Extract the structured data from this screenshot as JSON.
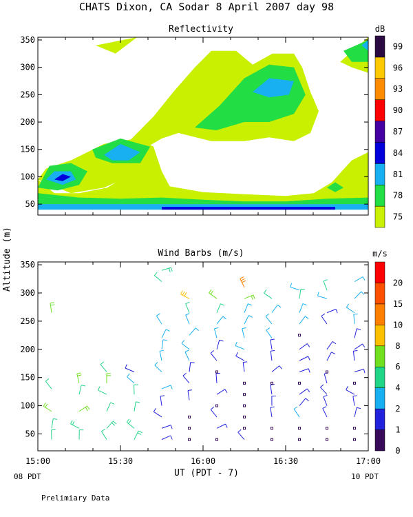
{
  "header": {
    "title": "CHATS Dixon, CA  Sodar   8 April 2007  day  98"
  },
  "panels": {
    "top_title": "Reflectivity",
    "bottom_title": "Wind Barbs (m/s)",
    "y_axis_label": "Altitude (m)",
    "x_axis_label": "UT  (PDT - 7)",
    "left_time_note": "08 PDT",
    "right_time_note": "10 PDT",
    "footer_note": "Prelimiary Data"
  },
  "colors": {
    "reflectivity": [
      "#c8f000",
      "#22dd44",
      "#18b0f0",
      "#0000dd",
      "#4400a0",
      "#ff0000",
      "#ff8c00",
      "#ffc800",
      "#2a0a40"
    ],
    "wind_speed": [
      "#3a0a5a",
      "#2222dd",
      "#18b0f0",
      "#22d488",
      "#70e020",
      "#ffc000",
      "#ff8000",
      "#ff5000",
      "#ff0000"
    ]
  },
  "chart_data": [
    {
      "type": "heatmap",
      "title": "Reflectivity",
      "xlabel": "UT  (PDT - 7)",
      "ylabel": "Altitude (m)",
      "x_ticks": [
        "15:00",
        "15:30",
        "16:00",
        "16:30",
        "17:00"
      ],
      "xlim": [
        "15:00",
        "17:00"
      ],
      "y_ticks": [
        50,
        100,
        150,
        200,
        250,
        300,
        350
      ],
      "ylim": [
        30,
        355
      ],
      "colorbar": {
        "unit": "dB",
        "labels": [
          75,
          78,
          81,
          84,
          87,
          90,
          93,
          96,
          99
        ]
      },
      "regions": [
        {
          "level": 75,
          "points": [
            [
              15.0,
              40
            ],
            [
              17.0,
              40
            ],
            [
              17.0,
              145
            ],
            [
              16.9,
              110
            ],
            [
              16.78,
              90
            ],
            [
              16.67,
              70
            ],
            [
              16.5,
              65
            ],
            [
              16.25,
              68
            ],
            [
              16.0,
              72
            ],
            [
              15.75,
              85
            ],
            [
              15.58,
              110
            ],
            [
              15.42,
              80
            ],
            [
              15.25,
              70
            ],
            [
              15.1,
              70
            ],
            [
              15.0,
              95
            ]
          ]
        },
        {
          "level": 75,
          "points": [
            [
              15.0,
              95
            ],
            [
              15.05,
              115
            ],
            [
              15.2,
              130
            ],
            [
              15.4,
              160
            ],
            [
              15.6,
              170
            ],
            [
              15.7,
              155
            ],
            [
              15.75,
              110
            ],
            [
              15.82,
              70
            ],
            [
              16.0,
              55
            ],
            [
              16.3,
              55
            ],
            [
              16.6,
              60
            ],
            [
              16.75,
              80
            ],
            [
              16.9,
              130
            ],
            [
              17.0,
              145
            ],
            [
              17.0,
              140
            ],
            [
              16.95,
              120
            ],
            [
              16.85,
              85
            ],
            [
              16.7,
              60
            ],
            [
              16.4,
              50
            ],
            [
              16.0,
              50
            ],
            [
              15.7,
              60
            ],
            [
              15.55,
              100
            ],
            [
              15.4,
              80
            ],
            [
              15.2,
              70
            ],
            [
              15.0,
              95
            ]
          ]
        },
        {
          "level": 75,
          "points": [
            [
              15.52,
              155
            ],
            [
              15.7,
              210
            ],
            [
              15.82,
              255
            ],
            [
              15.95,
              300
            ],
            [
              16.05,
              330
            ],
            [
              16.2,
              330
            ],
            [
              16.3,
              305
            ],
            [
              16.42,
              325
            ],
            [
              16.55,
              325
            ],
            [
              16.6,
              300
            ],
            [
              16.65,
              255
            ],
            [
              16.7,
              220
            ],
            [
              16.65,
              180
            ],
            [
              16.55,
              165
            ],
            [
              16.4,
              172
            ],
            [
              16.25,
              165
            ],
            [
              16.05,
              165
            ],
            [
              15.85,
              180
            ],
            [
              15.75,
              170
            ],
            [
              15.58,
              140
            ]
          ]
        },
        {
          "level": 75,
          "points": [
            [
              15.35,
              340
            ],
            [
              15.6,
              355
            ],
            [
              15.47,
              325
            ]
          ]
        },
        {
          "level": 75,
          "points": [
            [
              16.83,
              310
            ],
            [
              17.0,
              355
            ],
            [
              17.0,
              290
            ],
            [
              16.9,
              300
            ]
          ]
        },
        {
          "level": 78,
          "points": [
            [
              15.0,
              50
            ],
            [
              17.0,
              50
            ],
            [
              17.0,
              62
            ],
            [
              16.75,
              60
            ],
            [
              16.5,
              55
            ],
            [
              16.25,
              55
            ],
            [
              16.0,
              58
            ],
            [
              15.75,
              62
            ],
            [
              15.5,
              60
            ],
            [
              15.25,
              62
            ],
            [
              15.0,
              70
            ]
          ]
        },
        {
          "level": 78,
          "points": [
            [
              15.0,
              80
            ],
            [
              15.07,
              120
            ],
            [
              15.2,
              125
            ],
            [
              15.3,
              110
            ],
            [
              15.25,
              85
            ],
            [
              15.12,
              75
            ]
          ]
        },
        {
          "level": 78,
          "points": [
            [
              15.33,
              150
            ],
            [
              15.5,
              170
            ],
            [
              15.68,
              155
            ],
            [
              15.62,
              125
            ],
            [
              15.45,
              125
            ],
            [
              15.35,
              135
            ]
          ]
        },
        {
          "level": 78,
          "points": [
            [
              15.95,
              190
            ],
            [
              16.1,
              230
            ],
            [
              16.25,
              280
            ],
            [
              16.4,
              305
            ],
            [
              16.55,
              300
            ],
            [
              16.62,
              250
            ],
            [
              16.55,
              215
            ],
            [
              16.4,
              200
            ],
            [
              16.25,
              200
            ],
            [
              16.08,
              185
            ]
          ]
        },
        {
          "level": 78,
          "points": [
            [
              16.75,
              80
            ],
            [
              16.8,
              90
            ],
            [
              16.85,
              80
            ],
            [
              16.8,
              72
            ]
          ]
        },
        {
          "level": 78,
          "points": [
            [
              16.85,
              330
            ],
            [
              17.0,
              350
            ],
            [
              17.0,
              310
            ],
            [
              16.9,
              310
            ]
          ]
        },
        {
          "level": 81,
          "points": [
            [
              15.0,
              40
            ],
            [
              17.0,
              40
            ],
            [
              17.0,
              50
            ],
            [
              15.0,
              50
            ]
          ]
        },
        {
          "level": 81,
          "points": [
            [
              15.05,
              95
            ],
            [
              15.1,
              110
            ],
            [
              15.2,
              110
            ],
            [
              15.23,
              95
            ],
            [
              15.15,
              85
            ]
          ]
        },
        {
          "level": 81,
          "points": [
            [
              15.4,
              140
            ],
            [
              15.5,
              160
            ],
            [
              15.62,
              145
            ],
            [
              15.55,
              130
            ],
            [
              15.45,
              130
            ]
          ]
        },
        {
          "level": 81,
          "points": [
            [
              16.3,
              255
            ],
            [
              16.4,
              280
            ],
            [
              16.55,
              275
            ],
            [
              16.52,
              250
            ],
            [
              16.4,
              245
            ]
          ]
        },
        {
          "level": 81,
          "points": [
            [
              16.96,
              340
            ],
            [
              17.0,
              350
            ],
            [
              17.0,
              330
            ]
          ]
        },
        {
          "level": 84,
          "points": [
            [
              15.1,
              95
            ],
            [
              15.15,
              105
            ],
            [
              15.2,
              100
            ],
            [
              15.15,
              92
            ]
          ]
        },
        {
          "level": 84,
          "points": [
            [
              15.75,
              40
            ],
            [
              16.8,
              40
            ],
            [
              16.8,
              45
            ],
            [
              15.75,
              45
            ]
          ]
        }
      ]
    },
    {
      "type": "scatter",
      "title": "Wind Barbs (m/s)",
      "xlabel": "UT  (PDT - 7)",
      "ylabel": "Altitude (m)",
      "x_ticks": [
        "15:00",
        "15:30",
        "16:00",
        "16:30",
        "17:00"
      ],
      "xlim": [
        "15:00",
        "17:00"
      ],
      "y_ticks": [
        50,
        100,
        150,
        200,
        250,
        300,
        350
      ],
      "ylim": [
        20,
        355
      ],
      "colorbar": {
        "unit": "m/s",
        "labels": [
          0,
          1,
          2,
          4,
          6,
          8,
          10,
          15,
          20
        ]
      },
      "barb_times": [
        "15:05",
        "15:15",
        "15:25",
        "15:35",
        "15:45",
        "15:55",
        "16:05",
        "16:15",
        "16:25",
        "16:35",
        "16:45",
        "16:55"
      ],
      "barbs": [
        {
          "t": "15:05",
          "alts": [
            40,
            60,
            90,
            130,
            265
          ],
          "speeds": [
            4,
            4,
            6,
            4,
            6
          ]
        },
        {
          "t": "15:15",
          "alts": [
            40,
            60,
            90,
            120,
            140
          ],
          "speeds": [
            4,
            5,
            6,
            4,
            6
          ]
        },
        {
          "t": "15:25",
          "alts": [
            40,
            60,
            90,
            120,
            140,
            160
          ],
          "speeds": [
            4,
            5,
            4,
            4,
            6,
            4
          ]
        },
        {
          "t": "15:35",
          "alts": [
            40,
            60,
            90,
            120,
            140,
            160
          ],
          "speeds": [
            5,
            5,
            4,
            4,
            2,
            1
          ]
        },
        {
          "t": "15:45",
          "alts": [
            40,
            60,
            80,
            100,
            130,
            160,
            180,
            200,
            220,
            245,
            320,
            340
          ],
          "speeds": [
            1,
            1,
            1,
            1,
            2,
            2,
            2,
            2,
            2,
            2,
            4,
            5
          ]
        },
        {
          "t": "15:55",
          "alts": [
            40,
            60,
            80,
            110,
            140,
            160,
            180,
            200,
            225,
            245,
            265,
            290
          ],
          "speeds": [
            0,
            0,
            0,
            1,
            1,
            1,
            2,
            2,
            2,
            3,
            4,
            8
          ]
        },
        {
          "t": "16:05",
          "alts": [
            40,
            60,
            80,
            100,
            120,
            140,
            160,
            180,
            200,
            220,
            245,
            265,
            290
          ],
          "speeds": [
            0,
            1,
            1,
            0,
            1,
            1,
            0,
            1,
            1,
            2,
            2,
            4,
            6
          ]
        },
        {
          "t": "16:15",
          "alts": [
            40,
            60,
            80,
            100,
            120,
            140,
            160,
            180,
            200,
            220,
            245,
            265,
            290,
            310
          ],
          "speeds": [
            1,
            0,
            0,
            0,
            0,
            0,
            1,
            1,
            2,
            2,
            2,
            3,
            6,
            10
          ]
        },
        {
          "t": "16:25",
          "alts": [
            40,
            60,
            80,
            100,
            120,
            140,
            160,
            180,
            200,
            220,
            245,
            265,
            290
          ],
          "speeds": [
            0,
            0,
            1,
            1,
            1,
            0,
            1,
            1,
            1,
            2,
            2,
            3,
            4
          ]
        },
        {
          "t": "16:35",
          "alts": [
            40,
            60,
            80,
            100,
            120,
            140,
            160,
            180,
            200,
            225,
            245,
            265,
            290,
            305
          ],
          "speeds": [
            0,
            0,
            3,
            1,
            1,
            0,
            1,
            1,
            1,
            0,
            2,
            3,
            4,
            3
          ]
        },
        {
          "t": "16:45",
          "alts": [
            40,
            60,
            80,
            100,
            120,
            140,
            160,
            180,
            200,
            245,
            265,
            290,
            305
          ],
          "speeds": [
            0,
            0,
            1,
            1,
            1,
            1,
            0,
            1,
            1,
            1,
            1,
            3,
            4
          ]
        },
        {
          "t": "16:55",
          "alts": [
            40,
            60,
            80,
            100,
            120,
            140,
            160,
            180,
            200,
            220,
            245,
            265,
            290,
            320
          ],
          "speeds": [
            0,
            0,
            1,
            1,
            1,
            0,
            1,
            1,
            1,
            1,
            2,
            3,
            3,
            2
          ]
        }
      ]
    }
  ]
}
